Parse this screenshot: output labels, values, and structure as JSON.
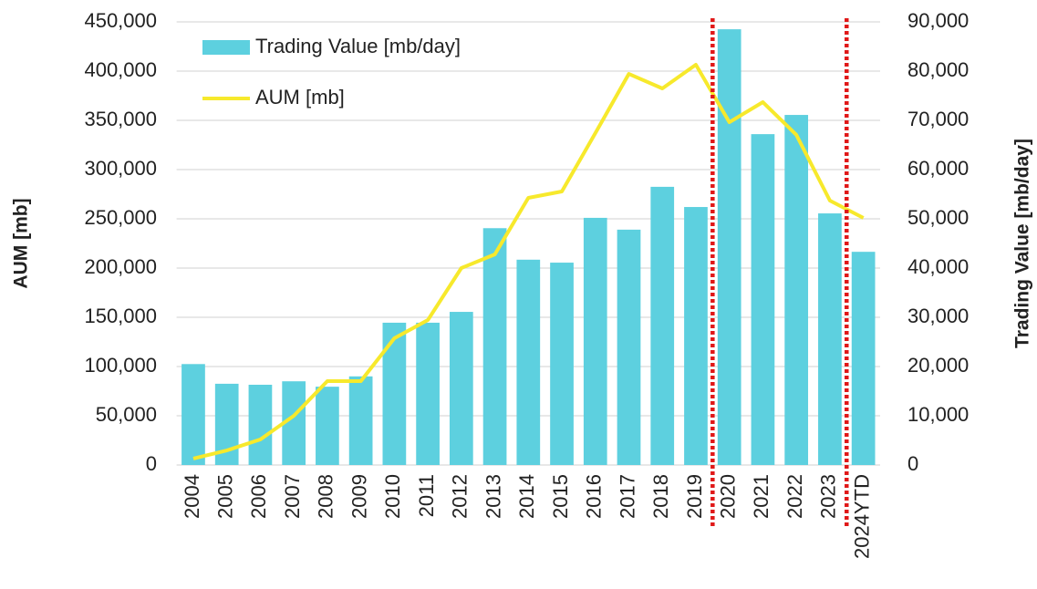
{
  "chart_data": {
    "type": "bar",
    "categories": [
      "2004",
      "2005",
      "2006",
      "2007",
      "2008",
      "2009",
      "2010",
      "2011",
      "2012",
      "2013",
      "2014",
      "2015",
      "2016",
      "2017",
      "2018",
      "2019",
      "2020",
      "2021",
      "2022",
      "2023",
      "2024YTD"
    ],
    "series": [
      {
        "name": "Trading Value [mb/day]",
        "type": "bar",
        "axis": "y2",
        "color": "#5dd0df",
        "values": [
          20500,
          16500,
          16300,
          17000,
          15900,
          18000,
          28900,
          28900,
          31100,
          48100,
          41700,
          41100,
          50200,
          47800,
          56500,
          52400,
          88500,
          67200,
          71100,
          51100,
          43300
        ]
      },
      {
        "name": "AUM [mb]",
        "type": "line",
        "axis": "y",
        "color": "#f7e92c",
        "values": [
          6500,
          14800,
          25900,
          50000,
          85200,
          85200,
          128700,
          147200,
          200000,
          213900,
          271300,
          277800,
          337000,
          397200,
          382400,
          406500,
          348100,
          368500,
          335200,
          268500,
          250900
        ]
      }
    ],
    "ylabel": "AUM [mb]",
    "y2label": "Trading Value [mb/day]",
    "ylim": [
      0,
      450000
    ],
    "yticks": [
      0,
      {
        "value": 50000,
        "label": "50,000"
      },
      {
        "value": 100000,
        "label": "100,000"
      },
      {
        "value": 150000,
        "label": "150,000"
      },
      {
        "value": 200000,
        "label": "200,000"
      },
      {
        "value": 250000,
        "label": "250,000"
      },
      {
        "value": 300000,
        "label": "300,000"
      },
      {
        "value": 350000,
        "label": "350,000"
      },
      {
        "value": 400000,
        "label": "400,000"
      },
      {
        "value": 450000,
        "label": "450,000"
      }
    ],
    "y2lim": [
      0,
      90000
    ],
    "y2ticks": [
      0,
      {
        "value": 10000,
        "label": "10,000"
      },
      {
        "value": 20000,
        "label": "20,000"
      },
      {
        "value": 30000,
        "label": "30,000"
      },
      {
        "value": 40000,
        "label": "40,000"
      },
      {
        "value": 50000,
        "label": "50,000"
      },
      {
        "value": 60000,
        "label": "60,000"
      },
      {
        "value": 70000,
        "label": "70,000"
      },
      {
        "value": 80000,
        "label": "80,000"
      },
      {
        "value": 90000,
        "label": "90,000"
      }
    ],
    "grid": true,
    "legend": "upper left"
  }
}
